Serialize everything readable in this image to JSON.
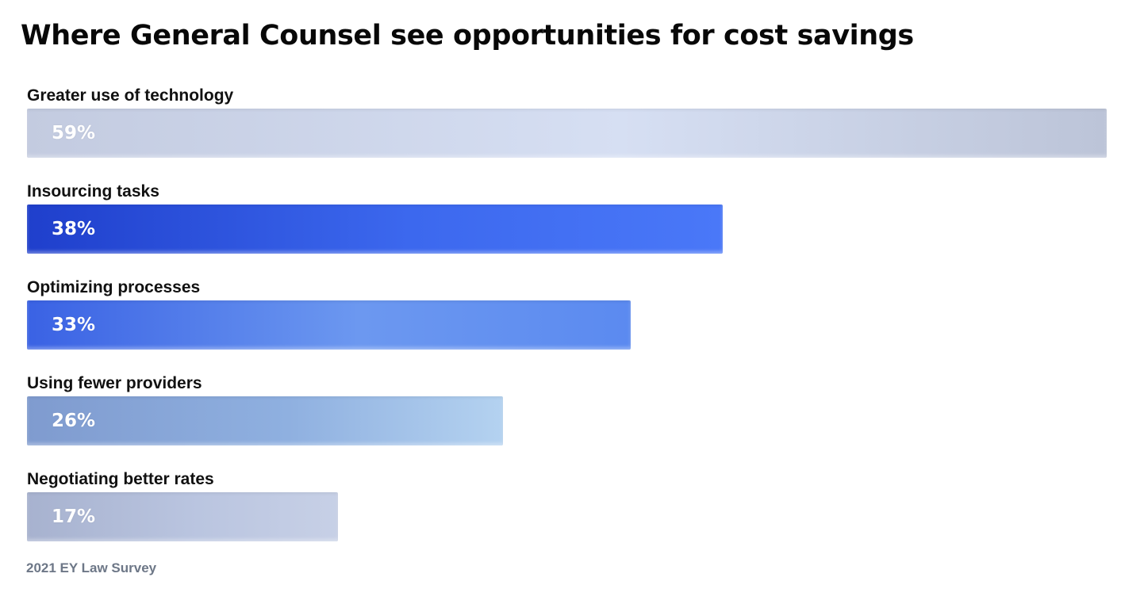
{
  "title": "Where General Counsel see opportunities for cost savings",
  "source": "2021 EY Law Survey",
  "colors": {
    "bar_1": [
      "#c3cbe0",
      "#d6dff3",
      "#bcc4d8"
    ],
    "bar_2": [
      "#1f3fcc",
      "#3c68ee",
      "#4a78f8"
    ],
    "bar_3": [
      "#3a62e4",
      "#6c98f0",
      "#5b8af0"
    ],
    "bar_4": [
      "#7f9bcf",
      "#8fb0e0",
      "#b4d2f0"
    ],
    "bar_5": [
      "#a7b2cf",
      "#bac5e0",
      "#c7d0e6"
    ],
    "value_text": "#ffffff",
    "source_text": "#6d7787"
  },
  "chart_data": {
    "type": "bar",
    "orientation": "horizontal",
    "title": "Where General Counsel see opportunities for cost savings",
    "categories": [
      "Greater use of technology",
      "Insourcing tasks",
      "Optimizing processes",
      "Using fewer providers",
      "Negotiating better rates"
    ],
    "values": [
      59,
      38,
      33,
      26,
      17
    ],
    "value_labels": [
      "59%",
      "38%",
      "33%",
      "26%",
      "17%"
    ],
    "unit": "%",
    "xlim": [
      0,
      59
    ],
    "grid": false,
    "legend": "none",
    "source": "2021 EY Law Survey"
  }
}
